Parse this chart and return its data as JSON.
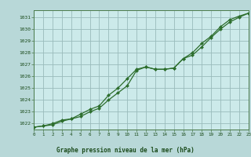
{
  "title": "Graphe pression niveau de la mer (hPa)",
  "bg_color": "#b8d8d8",
  "plot_bg_color": "#cceaea",
  "grid_color": "#99bbbb",
  "line_color": "#2d6e2d",
  "marker_color": "#2d6e2d",
  "x_min": 0,
  "x_max": 23,
  "y_min": 1021.5,
  "y_max": 1031.6,
  "y_ticks": [
    1022,
    1023,
    1024,
    1025,
    1026,
    1027,
    1028,
    1029,
    1030,
    1031
  ],
  "x_ticks": [
    0,
    1,
    2,
    3,
    4,
    5,
    6,
    7,
    8,
    9,
    10,
    11,
    12,
    13,
    14,
    15,
    16,
    17,
    18,
    19,
    20,
    21,
    22,
    23
  ],
  "series1_x": [
    0,
    1,
    2,
    3,
    4,
    5,
    6,
    7,
    8,
    9,
    10,
    11,
    12,
    13,
    14,
    15,
    16,
    17,
    18,
    19,
    20,
    21,
    22,
    23
  ],
  "series1_y": [
    1021.7,
    1021.8,
    1021.9,
    1022.2,
    1022.4,
    1022.6,
    1023.0,
    1023.3,
    1024.0,
    1024.6,
    1025.2,
    1026.5,
    1026.8,
    1026.6,
    1026.6,
    1026.7,
    1027.5,
    1028.0,
    1028.8,
    1029.4,
    1030.2,
    1030.8,
    1031.1,
    1031.35
  ],
  "series2_x": [
    0,
    1,
    2,
    3,
    4,
    5,
    6,
    7,
    8,
    9,
    10,
    11,
    12,
    13,
    14,
    15,
    16,
    17,
    18,
    19,
    20,
    21,
    22,
    23
  ],
  "series2_y": [
    1021.7,
    1021.8,
    1022.0,
    1022.3,
    1022.4,
    1022.8,
    1023.2,
    1023.5,
    1024.4,
    1025.0,
    1025.8,
    1026.6,
    1026.8,
    1026.6,
    1026.6,
    1026.7,
    1027.5,
    1027.8,
    1028.5,
    1029.3,
    1030.0,
    1030.6,
    1031.0,
    1031.35
  ]
}
